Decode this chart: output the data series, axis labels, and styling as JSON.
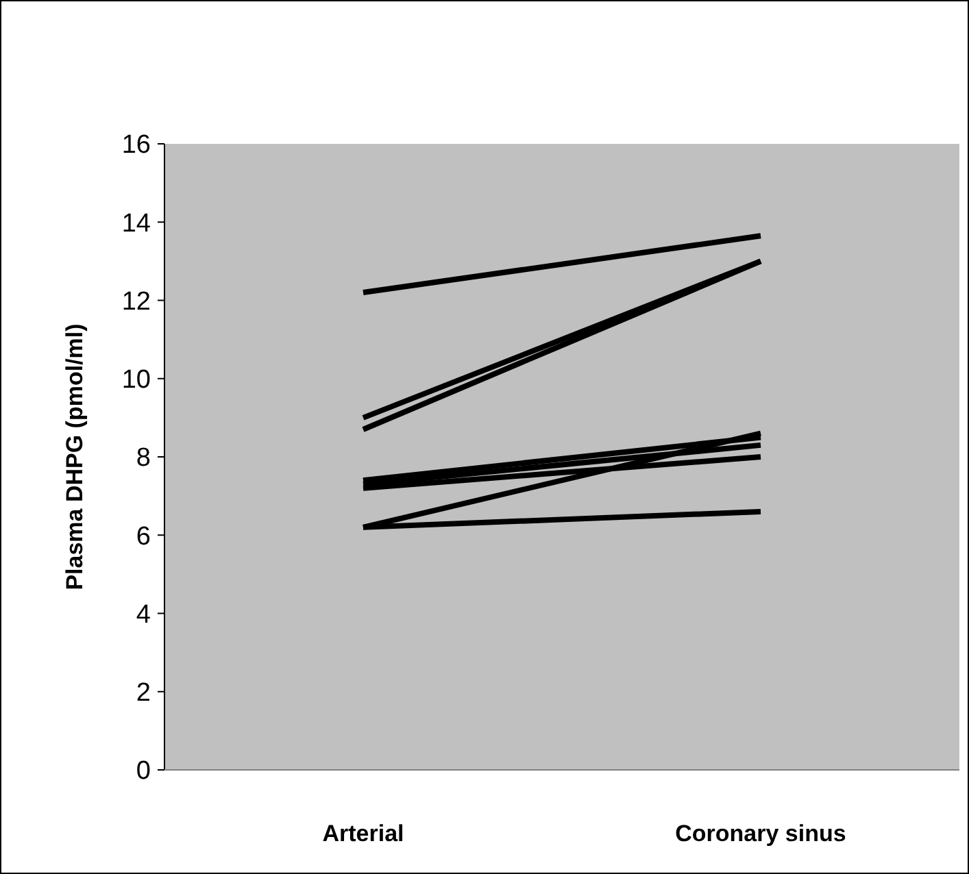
{
  "chart_data": {
    "type": "line",
    "ylabel": "Plasma DHPG (pmol/ml)",
    "categories": [
      "Arterial",
      "Coronary sinus"
    ],
    "ylim": [
      0,
      16
    ],
    "yticks": [
      0,
      2,
      4,
      6,
      8,
      10,
      12,
      14,
      16
    ],
    "grid": false,
    "marker": "none",
    "line_style": "solid",
    "series": [
      {
        "color": "#000000",
        "values": [
          12.2,
          13.65
        ]
      },
      {
        "color": "#000000",
        "values": [
          9.0,
          13.0
        ]
      },
      {
        "color": "#000000",
        "values": [
          8.7,
          13.0
        ]
      },
      {
        "color": "#000000",
        "values": [
          7.4,
          8.5
        ]
      },
      {
        "color": "#000000",
        "values": [
          7.3,
          8.3
        ]
      },
      {
        "color": "#000000",
        "values": [
          7.2,
          8.0
        ]
      },
      {
        "color": "#000000",
        "values": [
          6.2,
          8.6
        ]
      },
      {
        "color": "#000000",
        "values": [
          6.2,
          6.6
        ]
      }
    ]
  }
}
